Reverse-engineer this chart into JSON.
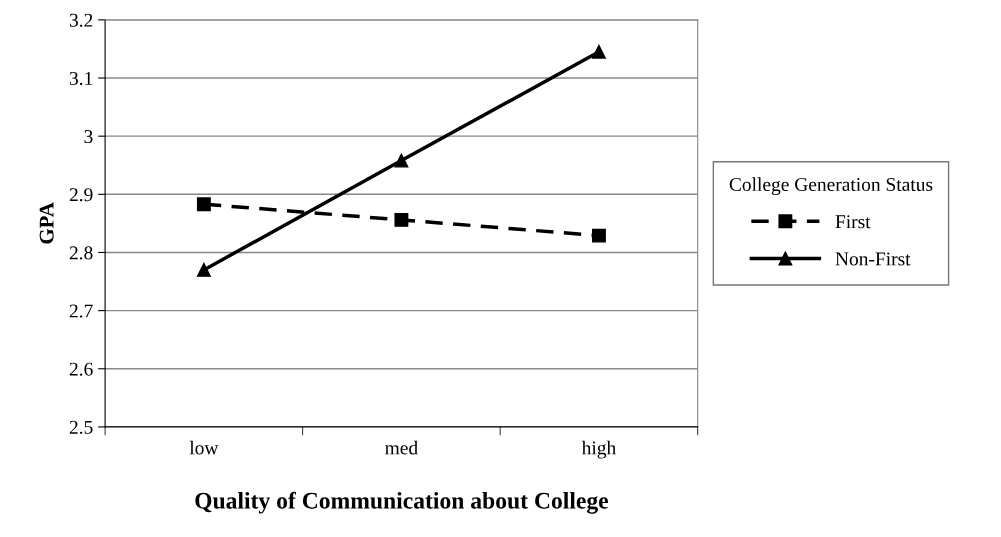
{
  "chart_data": {
    "type": "line",
    "xlabel": "Quality of Communication about College",
    "ylabel": "GPA",
    "categories": [
      "low",
      "med",
      "high"
    ],
    "series": [
      {
        "name": "First",
        "color": "#000000",
        "values": [
          2.883,
          2.856,
          2.829
        ],
        "marker": "square",
        "line_style": "dashed"
      },
      {
        "name": "Non-First",
        "color": "#000000",
        "values": [
          2.77,
          2.958,
          3.145
        ],
        "marker": "triangle",
        "line_style": "solid"
      }
    ],
    "ylim": [
      2.5,
      3.2
    ],
    "yticks": [
      2.5,
      2.6,
      2.7,
      2.8,
      2.9,
      {
        "value": 3.0,
        "label": "3"
      },
      3.1,
      3.2
    ],
    "grid": "y",
    "legend": "right",
    "legend_title": "College Generation Status"
  }
}
